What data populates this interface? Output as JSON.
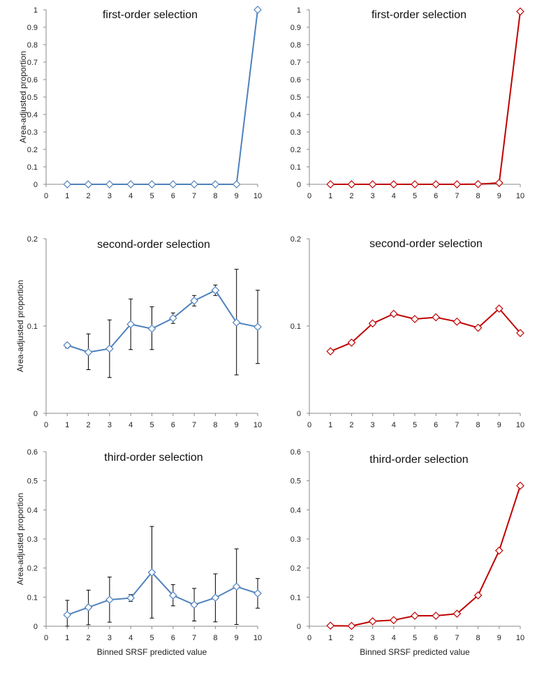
{
  "chart_data": [
    {
      "type": "line",
      "title": "first-order selection",
      "xlabel": "",
      "ylabel": "Area-adjusted proportion",
      "x": [
        1,
        2,
        3,
        4,
        5,
        6,
        7,
        8,
        9,
        10
      ],
      "xlim": [
        0,
        10
      ],
      "xticks": [
        0,
        1,
        2,
        3,
        4,
        5,
        6,
        7,
        8,
        9,
        10
      ],
      "ylim": [
        0,
        1
      ],
      "yticks": [
        0,
        0.1,
        0.2,
        0.3,
        0.4,
        0.5,
        0.6,
        0.7,
        0.8,
        0.9,
        1
      ],
      "grid": false,
      "color": "#4f81bd",
      "series": [
        {
          "values": [
            0,
            0,
            0,
            0,
            0,
            0,
            0,
            0,
            0,
            1
          ]
        }
      ]
    },
    {
      "type": "line",
      "title": "first-order selection",
      "xlabel": "",
      "ylabel": "",
      "x": [
        1,
        2,
        3,
        4,
        5,
        6,
        7,
        8,
        9,
        10
      ],
      "xlim": [
        0,
        10
      ],
      "xticks": [
        0,
        1,
        2,
        3,
        4,
        5,
        6,
        7,
        8,
        9,
        10
      ],
      "ylim": [
        0,
        1
      ],
      "yticks": [
        0,
        0.1,
        0.2,
        0.3,
        0.4,
        0.5,
        0.6,
        0.7,
        0.8,
        0.9,
        1
      ],
      "grid": false,
      "color": "#c00000",
      "series": [
        {
          "values": [
            0,
            0,
            0,
            0,
            0,
            0,
            0,
            0.001,
            0.008,
            0.99
          ]
        }
      ]
    },
    {
      "type": "line",
      "title": "second-order selection",
      "xlabel": "",
      "ylabel": "Area-adjusted proportion",
      "x": [
        1,
        2,
        3,
        4,
        5,
        6,
        7,
        8,
        9,
        10
      ],
      "xlim": [
        0,
        10
      ],
      "xticks": [
        0,
        1,
        2,
        3,
        4,
        5,
        6,
        7,
        8,
        9,
        10
      ],
      "ylim": [
        0,
        0.2
      ],
      "yticks": [
        0,
        0.1,
        0.2
      ],
      "grid": false,
      "color": "#4f81bd",
      "series": [
        {
          "values": [
            0.078,
            0.07,
            0.074,
            0.102,
            0.097,
            0.109,
            0.129,
            0.141,
            0.104,
            0.099
          ],
          "err_low": [
            0.075,
            0.05,
            0.041,
            0.073,
            0.073,
            0.103,
            0.123,
            0.135,
            0.044,
            0.057
          ],
          "err_high": [
            0.08,
            0.091,
            0.107,
            0.131,
            0.122,
            0.115,
            0.135,
            0.147,
            0.165,
            0.141
          ]
        }
      ]
    },
    {
      "type": "line",
      "title": "second-order selection",
      "xlabel": "",
      "ylabel": "",
      "x": [
        1,
        2,
        3,
        4,
        5,
        6,
        7,
        8,
        9,
        10
      ],
      "xlim": [
        0,
        10
      ],
      "xticks": [
        0,
        1,
        2,
        3,
        4,
        5,
        6,
        7,
        8,
        9,
        10
      ],
      "ylim": [
        0,
        0.2
      ],
      "yticks": [
        0,
        0.1,
        0.2
      ],
      "grid": false,
      "color": "#c00000",
      "series": [
        {
          "values": [
            0.071,
            0.081,
            0.103,
            0.114,
            0.108,
            0.11,
            0.105,
            0.098,
            0.12,
            0.092
          ]
        }
      ]
    },
    {
      "type": "line",
      "title": "third-order selection",
      "xlabel": "Binned SRSF predicted value",
      "ylabel": "Area-adjusted proportion",
      "x": [
        1,
        2,
        3,
        4,
        5,
        6,
        7,
        8,
        9,
        10
      ],
      "xlim": [
        0,
        10
      ],
      "xticks": [
        0,
        1,
        2,
        3,
        4,
        5,
        6,
        7,
        8,
        9,
        10
      ],
      "ylim": [
        0,
        0.6
      ],
      "yticks": [
        0,
        0.1,
        0.2,
        0.3,
        0.4,
        0.5,
        0.6
      ],
      "grid": false,
      "color": "#4f81bd",
      "series": [
        {
          "values": [
            0.039,
            0.065,
            0.091,
            0.097,
            0.185,
            0.106,
            0.074,
            0.098,
            0.136,
            0.113
          ],
          "err_low": [
            0.0,
            0.005,
            0.014,
            0.085,
            0.028,
            0.07,
            0.018,
            0.015,
            0.006,
            0.062
          ],
          "err_high": [
            0.089,
            0.124,
            0.169,
            0.109,
            0.343,
            0.143,
            0.13,
            0.18,
            0.266,
            0.164
          ]
        }
      ]
    },
    {
      "type": "line",
      "title": "third-order selection",
      "xlabel": "Binned SRSF predicted value",
      "ylabel": "",
      "x": [
        1,
        2,
        3,
        4,
        5,
        6,
        7,
        8,
        9,
        10
      ],
      "xlim": [
        0,
        10
      ],
      "xticks": [
        0,
        1,
        2,
        3,
        4,
        5,
        6,
        7,
        8,
        9,
        10
      ],
      "ylim": [
        0,
        0.6
      ],
      "yticks": [
        0,
        0.1,
        0.2,
        0.3,
        0.4,
        0.5,
        0.6
      ],
      "grid": false,
      "color": "#c00000",
      "series": [
        {
          "values": [
            0.002,
            0.001,
            0.017,
            0.021,
            0.036,
            0.036,
            0.043,
            0.106,
            0.26,
            0.483
          ]
        }
      ]
    }
  ]
}
